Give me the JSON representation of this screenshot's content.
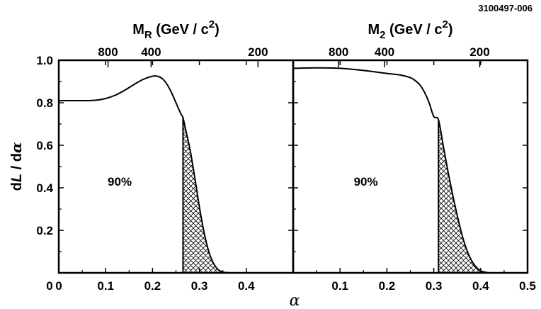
{
  "figure_id": "3100497-006",
  "chart_data": {
    "type": "line",
    "ylabel": "dL / dα",
    "ylabel_parts": [
      "d",
      "L",
      " / d",
      "α"
    ],
    "xlabel": "α",
    "ylim": [
      0,
      1.0
    ],
    "y_ticks": [
      0.2,
      0.4,
      0.6,
      0.8,
      1.0
    ],
    "y_tick_labels": [
      "0.2",
      "0.4",
      "0.6",
      "0.8",
      "1.0"
    ],
    "panels": [
      {
        "name": "left",
        "top_axis_label": {
          "main": "M",
          "sub": "R",
          "units": "(GeV / c",
          "sup": "2",
          "close": ")"
        },
        "top_ticks": [
          {
            "label": "800",
            "x": 0.105
          },
          {
            "label": "400",
            "x": 0.197
          },
          {
            "label": "200",
            "x": 0.425
          }
        ],
        "xlim": [
          0,
          0.5
        ],
        "x_ticks": [
          0,
          0.1,
          0.2,
          0.3,
          0.4
        ],
        "x_tick_labels": [
          "0",
          "0.1",
          "0.2",
          "0.3",
          "0.4"
        ],
        "limit_alpha": 0.265,
        "limit_label": "90%",
        "limit_label_pos": {
          "x": 0.13,
          "y": 0.43
        },
        "curve": {
          "x": [
            0,
            0.02,
            0.04,
            0.06,
            0.08,
            0.1,
            0.12,
            0.14,
            0.16,
            0.18,
            0.2,
            0.21,
            0.22,
            0.23,
            0.24,
            0.25,
            0.26,
            0.265,
            0.27,
            0.28,
            0.29,
            0.3,
            0.31,
            0.32,
            0.33,
            0.34,
            0.35,
            0.36,
            0.37,
            0.4,
            0.5
          ],
          "y": [
            0.81,
            0.81,
            0.81,
            0.81,
            0.812,
            0.82,
            0.835,
            0.858,
            0.885,
            0.91,
            0.925,
            0.925,
            0.915,
            0.89,
            0.85,
            0.8,
            0.75,
            0.73,
            0.68,
            0.58,
            0.45,
            0.31,
            0.19,
            0.1,
            0.045,
            0.015,
            0.004,
            0.001,
            0.0,
            0.0,
            0.0
          ]
        }
      },
      {
        "name": "right",
        "top_axis_label": {
          "main": "M",
          "sub": "2",
          "units": "(GeV / c",
          "sup": "2",
          "close": ")"
        },
        "top_ticks": [
          {
            "label": "800",
            "x": 0.097
          },
          {
            "label": "400",
            "x": 0.195
          },
          {
            "label": "200",
            "x": 0.398
          }
        ],
        "xlim": [
          0,
          0.5
        ],
        "x_ticks": [
          0,
          0.1,
          0.2,
          0.3,
          0.4,
          0.5
        ],
        "x_tick_labels": [
          "",
          "0.1",
          "0.2",
          "0.3",
          "0.4",
          "0.5"
        ],
        "limit_alpha": 0.31,
        "limit_label": "90%",
        "limit_label_pos": {
          "x": 0.155,
          "y": 0.43
        },
        "curve": {
          "x": [
            0,
            0.05,
            0.1,
            0.15,
            0.2,
            0.23,
            0.25,
            0.26,
            0.27,
            0.28,
            0.29,
            0.3,
            0.31,
            0.32,
            0.33,
            0.34,
            0.35,
            0.36,
            0.37,
            0.38,
            0.39,
            0.4,
            0.41,
            0.42,
            0.43,
            0.5
          ],
          "y": [
            0.962,
            0.964,
            0.962,
            0.952,
            0.938,
            0.93,
            0.918,
            0.905,
            0.885,
            0.85,
            0.8,
            0.735,
            0.72,
            0.6,
            0.48,
            0.37,
            0.27,
            0.18,
            0.11,
            0.06,
            0.028,
            0.01,
            0.003,
            0.0,
            0.0,
            0.0
          ]
        }
      }
    ]
  }
}
